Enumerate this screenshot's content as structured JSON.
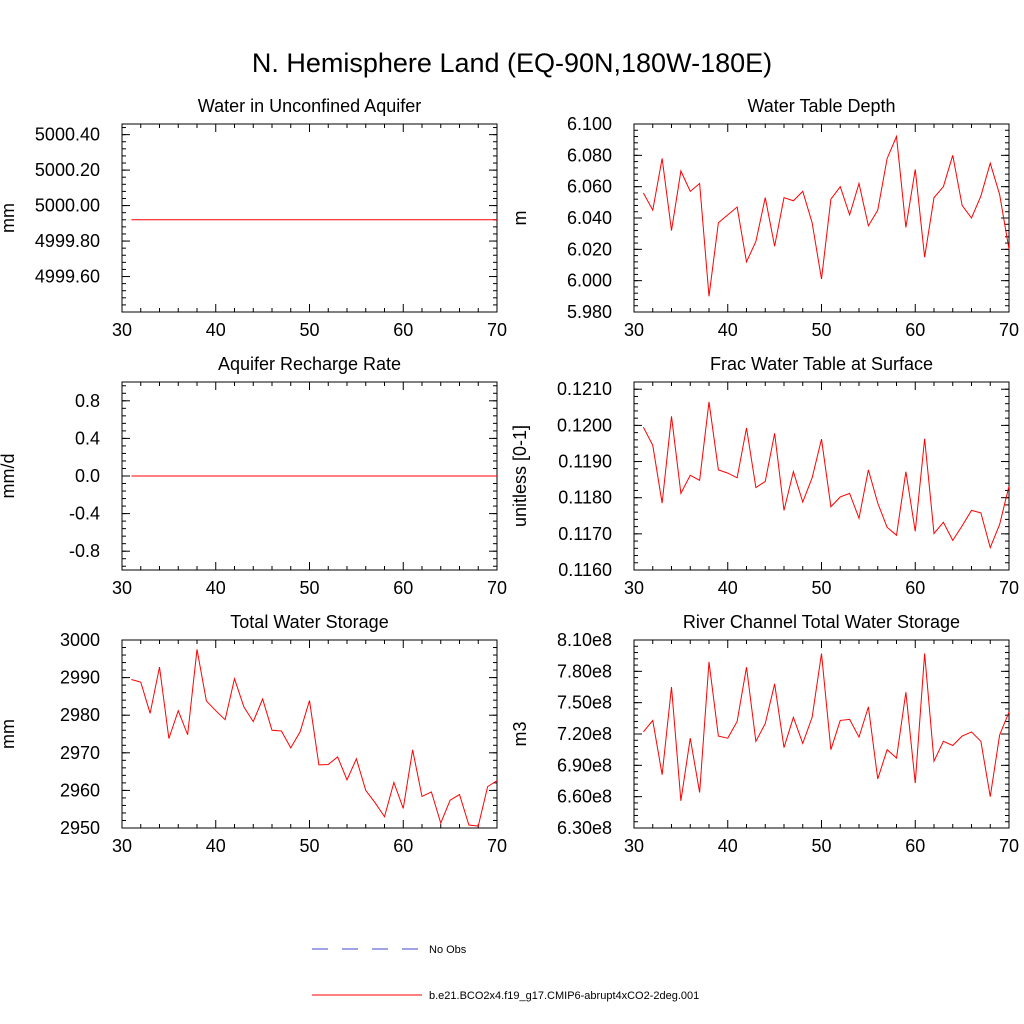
{
  "figure": {
    "title": "N. Hemisphere Land (EQ-90N,180W-180E)"
  },
  "legend": {
    "obs_label": "No Obs",
    "model_label": "b.e21.BCO2x4.f19_g17.CMIP6-abrupt4xCO2-2deg.001",
    "obs_color": "#4444cc",
    "model_color": "#ff0000"
  },
  "chart_data": [
    {
      "type": "line",
      "title": "Water in Unconfined Aquifer",
      "ylabel": "mm",
      "xlabel": "",
      "xlim": [
        30,
        70
      ],
      "ylim": [
        4999.4,
        5000.46
      ],
      "xticks": [
        30,
        40,
        50,
        60,
        70
      ],
      "xtick_labels": [
        "30",
        "40",
        "50",
        "60",
        "70"
      ],
      "yticks": [
        4999.6,
        4999.8,
        5000.0,
        5000.2,
        5000.4
      ],
      "ytick_labels": [
        "4999.60",
        "4999.80",
        "5000.00",
        "5000.20",
        "5000.40"
      ],
      "x": [
        31,
        32,
        33,
        34,
        35,
        36,
        37,
        38,
        39,
        40,
        41,
        42,
        43,
        44,
        45,
        46,
        47,
        48,
        49,
        50,
        51,
        52,
        53,
        54,
        55,
        56,
        57,
        58,
        59,
        60,
        61,
        62,
        63,
        64,
        65,
        66,
        67,
        68,
        69,
        70
      ],
      "series": [
        {
          "name": "b.e21.BCO2x4.f19_g17.CMIP6-abrupt4xCO2-2deg.001",
          "values": [
            4999.92,
            4999.92,
            4999.92,
            4999.92,
            4999.92,
            4999.92,
            4999.92,
            4999.92,
            4999.92,
            4999.92,
            4999.92,
            4999.92,
            4999.92,
            4999.92,
            4999.92,
            4999.92,
            4999.92,
            4999.92,
            4999.92,
            4999.92,
            4999.92,
            4999.92,
            4999.92,
            4999.92,
            4999.92,
            4999.92,
            4999.92,
            4999.92,
            4999.92,
            4999.92,
            4999.92,
            4999.92,
            4999.92,
            4999.92,
            4999.92,
            4999.92,
            4999.92,
            4999.92,
            4999.92,
            4999.92
          ]
        }
      ]
    },
    {
      "type": "line",
      "title": "Water Table Depth",
      "ylabel": "m",
      "xlabel": "",
      "xlim": [
        30,
        70
      ],
      "ylim": [
        5.98,
        6.1
      ],
      "xticks": [
        30,
        40,
        50,
        60,
        70
      ],
      "xtick_labels": [
        "30",
        "40",
        "50",
        "60",
        "70"
      ],
      "yticks": [
        5.98,
        6.0,
        6.02,
        6.04,
        6.06,
        6.08,
        6.1
      ],
      "ytick_labels": [
        "5.980",
        "6.000",
        "6.020",
        "6.040",
        "6.060",
        "6.080",
        "6.100"
      ],
      "x": [
        31,
        32,
        33,
        34,
        35,
        36,
        37,
        38,
        39,
        40,
        41,
        42,
        43,
        44,
        45,
        46,
        47,
        48,
        49,
        50,
        51,
        52,
        53,
        54,
        55,
        56,
        57,
        58,
        59,
        60,
        61,
        62,
        63,
        64,
        65,
        66,
        67,
        68,
        69,
        70
      ],
      "series": [
        {
          "name": "b.e21.BCO2x4.f19_g17.CMIP6-abrupt4xCO2-2deg.001",
          "values": [
            6.056,
            6.045,
            6.078,
            6.032,
            6.07,
            6.057,
            6.062,
            5.99,
            6.037,
            6.042,
            6.047,
            6.012,
            6.025,
            6.053,
            6.022,
            6.053,
            6.051,
            6.057,
            6.037,
            6.001,
            6.052,
            6.06,
            6.042,
            6.062,
            6.035,
            6.045,
            6.078,
            6.092,
            6.034,
            6.071,
            6.015,
            6.053,
            6.06,
            6.08,
            6.048,
            6.04,
            6.054,
            6.075,
            6.055,
            6.02
          ]
        }
      ]
    },
    {
      "type": "line",
      "title": "Aquifer Recharge Rate",
      "ylabel": "mm/d",
      "xlabel": "",
      "xlim": [
        30,
        70
      ],
      "ylim": [
        -1.0,
        1.0
      ],
      "xticks": [
        30,
        40,
        50,
        60,
        70
      ],
      "xtick_labels": [
        "30",
        "40",
        "50",
        "60",
        "70"
      ],
      "yticks": [
        -0.8,
        -0.4,
        0.0,
        0.4,
        0.8
      ],
      "ytick_labels": [
        "-0.8",
        "-0.4",
        "0.0",
        "0.4",
        "0.8"
      ],
      "x": [
        31,
        32,
        33,
        34,
        35,
        36,
        37,
        38,
        39,
        40,
        41,
        42,
        43,
        44,
        45,
        46,
        47,
        48,
        49,
        50,
        51,
        52,
        53,
        54,
        55,
        56,
        57,
        58,
        59,
        60,
        61,
        62,
        63,
        64,
        65,
        66,
        67,
        68,
        69,
        70
      ],
      "series": [
        {
          "name": "b.e21.BCO2x4.f19_g17.CMIP6-abrupt4xCO2-2deg.001",
          "values": [
            0,
            0,
            0,
            0,
            0,
            0,
            0,
            0,
            0,
            0,
            0,
            0,
            0,
            0,
            0,
            0,
            0,
            0,
            0,
            0,
            0,
            0,
            0,
            0,
            0,
            0,
            0,
            0,
            0,
            0,
            0,
            0,
            0,
            0,
            0,
            0,
            0,
            0,
            0,
            0
          ]
        }
      ]
    },
    {
      "type": "line",
      "title": "Frac Water Table at Surface",
      "ylabel": "unitless [0-1]",
      "xlabel": "",
      "xlim": [
        30,
        70
      ],
      "ylim": [
        0.116,
        0.1212
      ],
      "xticks": [
        30,
        40,
        50,
        60,
        70
      ],
      "xtick_labels": [
        "30",
        "40",
        "50",
        "60",
        "70"
      ],
      "yticks": [
        0.116,
        0.117,
        0.118,
        0.119,
        0.12,
        0.121
      ],
      "ytick_labels": [
        "0.1160",
        "0.1170",
        "0.1180",
        "0.1190",
        "0.1200",
        "0.1210"
      ],
      "x": [
        31,
        32,
        33,
        34,
        35,
        36,
        37,
        38,
        39,
        40,
        41,
        42,
        43,
        44,
        45,
        46,
        47,
        48,
        49,
        50,
        51,
        52,
        53,
        54,
        55,
        56,
        57,
        58,
        59,
        60,
        61,
        62,
        63,
        64,
        65,
        66,
        67,
        68,
        69,
        70
      ],
      "series": [
        {
          "name": "b.e21.BCO2x4.f19_g17.CMIP6-abrupt4xCO2-2deg.001",
          "values": [
            0.11995,
            0.11945,
            0.11785,
            0.12025,
            0.11812,
            0.11862,
            0.11848,
            0.12065,
            0.11877,
            0.11868,
            0.11855,
            0.11993,
            0.11828,
            0.11845,
            0.11978,
            0.11765,
            0.11872,
            0.11788,
            0.11855,
            0.11962,
            0.11775,
            0.11802,
            0.11812,
            0.11743,
            0.11877,
            0.11785,
            0.11718,
            0.11696,
            0.11872,
            0.11707,
            0.11963,
            0.11701,
            0.11732,
            0.11682,
            0.11722,
            0.11765,
            0.11758,
            0.11662,
            0.11726,
            0.11832
          ]
        }
      ]
    },
    {
      "type": "line",
      "title": "Total Water Storage",
      "ylabel": "mm",
      "xlabel": "",
      "xlim": [
        30,
        70
      ],
      "ylim": [
        2950,
        3000
      ],
      "xticks": [
        30,
        40,
        50,
        60,
        70
      ],
      "xtick_labels": [
        "30",
        "40",
        "50",
        "60",
        "70"
      ],
      "yticks": [
        2950,
        2960,
        2970,
        2980,
        2990,
        3000
      ],
      "ytick_labels": [
        "2950",
        "2960",
        "2970",
        "2980",
        "2990",
        "3000"
      ],
      "x": [
        31,
        32,
        33,
        34,
        35,
        36,
        37,
        38,
        39,
        40,
        41,
        42,
        43,
        44,
        45,
        46,
        47,
        48,
        49,
        50,
        51,
        52,
        53,
        54,
        55,
        56,
        57,
        58,
        59,
        60,
        61,
        62,
        63,
        64,
        65,
        66,
        67,
        68,
        69,
        70
      ],
      "series": [
        {
          "name": "b.e21.BCO2x4.f19_g17.CMIP6-abrupt4xCO2-2deg.001",
          "values": [
            2989.5,
            2988.8,
            2980.5,
            2992.8,
            2973.8,
            2981.2,
            2974.8,
            2997.5,
            2983.8,
            2981.2,
            2978.8,
            2989.7,
            2982.2,
            2978.3,
            2984.3,
            2976.0,
            2975.8,
            2971.3,
            2975.6,
            2983.9,
            2966.8,
            2966.9,
            2968.9,
            2962.8,
            2968.4,
            2960.0,
            2956.7,
            2953.0,
            2962.1,
            2955.2,
            2970.8,
            2958.4,
            2959.6,
            2951.3,
            2957.4,
            2958.9,
            2950.8,
            2950.5,
            2961.0,
            2962.6
          ]
        }
      ]
    },
    {
      "type": "line",
      "title": "River Channel Total Water Storage",
      "ylabel": "m3",
      "xlabel": "",
      "xlim": [
        30,
        70
      ],
      "ylim": [
        630000000,
        810000000
      ],
      "xticks": [
        30,
        40,
        50,
        60,
        70
      ],
      "xtick_labels": [
        "30",
        "40",
        "50",
        "60",
        "70"
      ],
      "yticks": [
        630000000,
        660000000,
        690000000,
        720000000,
        750000000,
        780000000,
        810000000
      ],
      "ytick_labels": [
        "6.30e8",
        "6.60e8",
        "6.90e8",
        "7.20e8",
        "7.50e8",
        "7.80e8",
        "8.10e8"
      ],
      "x": [
        31,
        32,
        33,
        34,
        35,
        36,
        37,
        38,
        39,
        40,
        41,
        42,
        43,
        44,
        45,
        46,
        47,
        48,
        49,
        50,
        51,
        52,
        53,
        54,
        55,
        56,
        57,
        58,
        59,
        60,
        61,
        62,
        63,
        64,
        65,
        66,
        67,
        68,
        69,
        70
      ],
      "series": [
        {
          "name": "b.e21.BCO2x4.f19_g17.CMIP6-abrupt4xCO2-2deg.001",
          "values": [
            722000000,
            733000000,
            681000000,
            765000000,
            656000000,
            716000000,
            664000000,
            789000000,
            718000000,
            716000000,
            732000000,
            784000000,
            713000000,
            730000000,
            768000000,
            707000000,
            736000000,
            711000000,
            736000000,
            797000000,
            705000000,
            733000000,
            734000000,
            717000000,
            746000000,
            677000000,
            705000000,
            697000000,
            760000000,
            673000000,
            797000000,
            694000000,
            713000000,
            709000000,
            718000000,
            722000000,
            713000000,
            660000000,
            719000000,
            741000000
          ]
        }
      ]
    }
  ]
}
